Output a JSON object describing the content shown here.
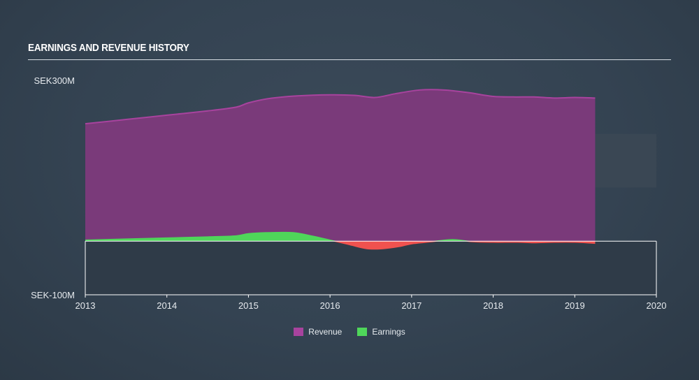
{
  "title": "EARNINGS AND REVENUE HISTORY",
  "colors": {
    "revenue_fill": "#7a3a7a",
    "revenue_line": "#a8439e",
    "earnings_pos": "#4fd65a",
    "earnings_neg": "#f0524f",
    "lower_band": "#2f3b48",
    "zero_line": "#ffffff"
  },
  "chart_data": {
    "type": "area",
    "title": "EARNINGS AND REVENUE HISTORY",
    "xlim": [
      2013,
      2020
    ],
    "ylim": [
      -100,
      300
    ],
    "x_ticks": [
      "2013",
      "2014",
      "2015",
      "2016",
      "2017",
      "2018",
      "2019",
      "2020"
    ],
    "y_tick_labels": [
      {
        "value": 300,
        "label": "SEK300M"
      },
      {
        "value": -100,
        "label": "SEK-100M"
      }
    ],
    "legend_position": "bottom-center",
    "series": [
      {
        "name": "Revenue",
        "x": [
          2013.0,
          2013.5,
          2014.0,
          2014.5,
          2014.85,
          2015.0,
          2015.25,
          2015.6,
          2016.0,
          2016.3,
          2016.55,
          2016.8,
          2017.1,
          2017.4,
          2017.7,
          2018.0,
          2018.25,
          2018.5,
          2018.75,
          2019.0,
          2019.25
        ],
        "y": [
          219,
          227,
          235,
          243,
          250,
          258,
          266,
          271,
          273,
          272,
          268,
          275,
          282,
          282,
          277,
          270,
          269,
          269,
          267,
          268,
          267
        ]
      },
      {
        "name": "Earnings",
        "x": [
          2013.0,
          2013.5,
          2014.0,
          2014.5,
          2014.85,
          2015.0,
          2015.25,
          2015.55,
          2015.8,
          2016.0,
          2016.2,
          2016.45,
          2016.65,
          2016.85,
          2017.0,
          2017.25,
          2017.5,
          2017.75,
          2018.0,
          2018.3,
          2018.5,
          2018.75,
          2019.0,
          2019.25
        ],
        "y": [
          2,
          4,
          6,
          8,
          10,
          14,
          16,
          16,
          9,
          2,
          -5,
          -14,
          -14,
          -10,
          -5,
          -1,
          3,
          -1,
          -2,
          -2,
          -3,
          -2,
          -2,
          -4
        ]
      }
    ]
  },
  "legend": {
    "revenue": "Revenue",
    "earnings": "Earnings"
  }
}
